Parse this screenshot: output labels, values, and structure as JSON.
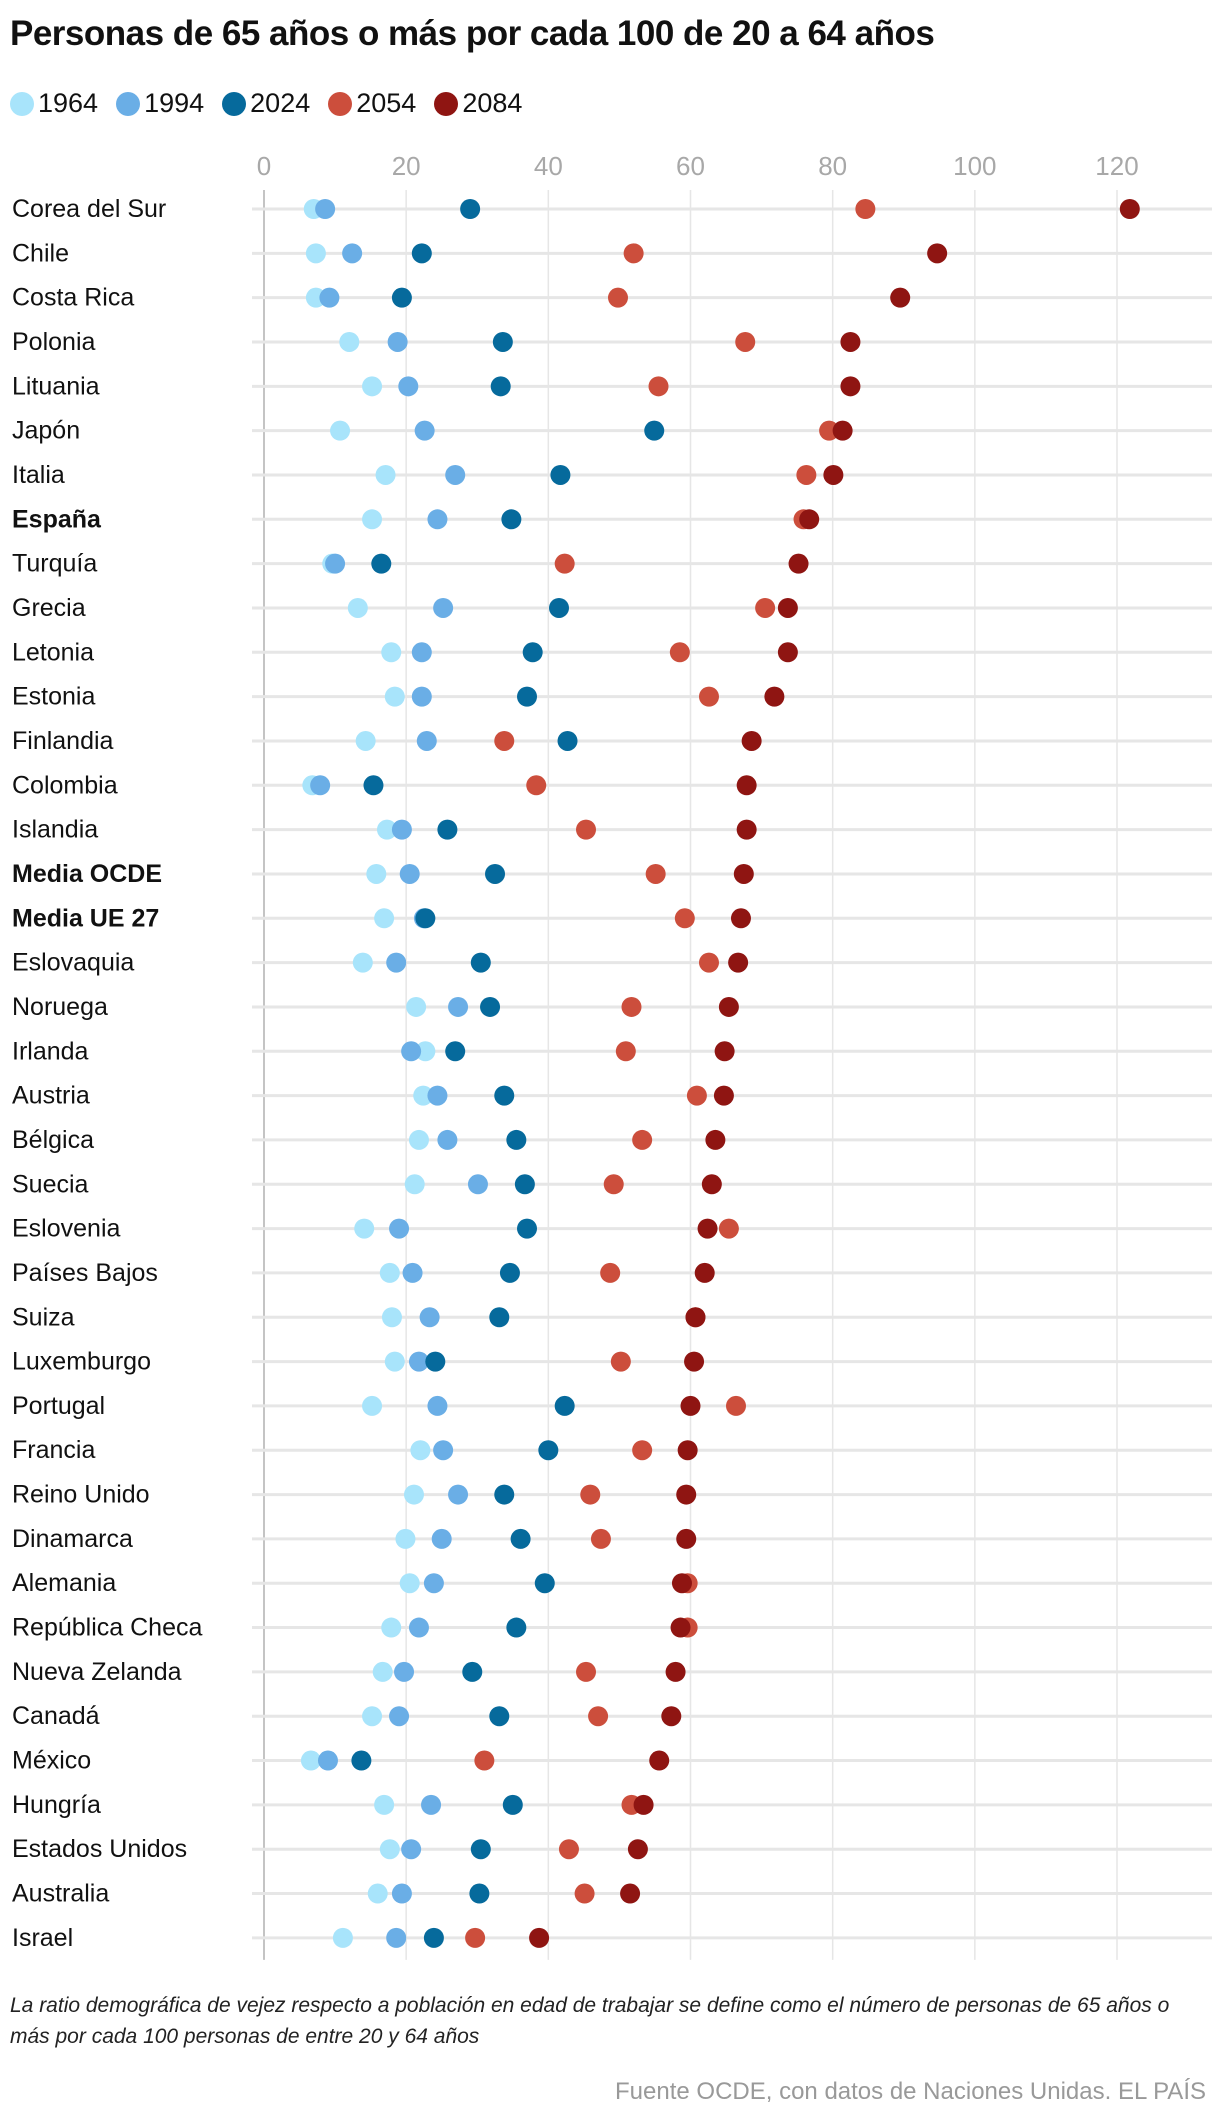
{
  "chart_data": {
    "type": "scatter",
    "title": "Personas de 65 años o más por cada 100 de 20 a 64 años",
    "xlim": [
      0,
      125
    ],
    "xticks": [
      0,
      20,
      40,
      60,
      80,
      100,
      120
    ],
    "grid": true,
    "legend_placement": "top-left",
    "series": [
      {
        "name": "1964",
        "color": "#a8e4fb"
      },
      {
        "name": "1994",
        "color": "#6aaee6"
      },
      {
        "name": "2024",
        "color": "#066a9c"
      },
      {
        "name": "2054",
        "color": "#cc4e3c"
      },
      {
        "name": "2084",
        "color": "#8f1512"
      }
    ],
    "categories": [
      {
        "label": "Corea del Sur",
        "bold": false,
        "values": [
          7.0,
          8.6,
          29.0,
          84.6,
          121.8
        ]
      },
      {
        "label": "Chile",
        "bold": false,
        "values": [
          7.3,
          12.4,
          22.2,
          52.0,
          94.7
        ]
      },
      {
        "label": "Costa Rica",
        "bold": false,
        "values": [
          7.3,
          9.2,
          19.4,
          49.8,
          89.5
        ]
      },
      {
        "label": "Polonia",
        "bold": false,
        "values": [
          12.0,
          18.8,
          33.6,
          67.7,
          82.5
        ]
      },
      {
        "label": "Lituania",
        "bold": false,
        "values": [
          15.2,
          20.3,
          33.3,
          55.5,
          82.5
        ]
      },
      {
        "label": "Japón",
        "bold": false,
        "values": [
          10.7,
          22.6,
          54.9,
          79.5,
          81.4
        ]
      },
      {
        "label": "Italia",
        "bold": false,
        "values": [
          17.1,
          26.9,
          41.7,
          76.3,
          80.1
        ]
      },
      {
        "label": "España",
        "bold": true,
        "values": [
          15.2,
          24.4,
          34.8,
          75.9,
          76.7
        ]
      },
      {
        "label": "Turquía",
        "bold": false,
        "values": [
          9.6,
          10.0,
          16.5,
          42.3,
          75.2
        ]
      },
      {
        "label": "Grecia",
        "bold": false,
        "values": [
          13.2,
          25.2,
          41.5,
          70.5,
          73.7
        ]
      },
      {
        "label": "Letonia",
        "bold": false,
        "values": [
          17.9,
          22.2,
          37.8,
          58.5,
          73.7
        ]
      },
      {
        "label": "Estonia",
        "bold": false,
        "values": [
          18.4,
          22.2,
          37.0,
          62.6,
          71.8
        ]
      },
      {
        "label": "Finlandia",
        "bold": false,
        "values": [
          14.3,
          22.9,
          42.7,
          33.8,
          68.6
        ]
      },
      {
        "label": "Colombia",
        "bold": false,
        "values": [
          6.8,
          7.9,
          15.4,
          38.3,
          67.9
        ]
      },
      {
        "label": "Islandia",
        "bold": false,
        "values": [
          17.3,
          19.4,
          25.8,
          45.3,
          67.9
        ]
      },
      {
        "label": "Media OCDE",
        "bold": true,
        "values": [
          15.8,
          20.5,
          32.5,
          55.1,
          67.5
        ]
      },
      {
        "label": "Media UE 27",
        "bold": true,
        "values": [
          16.9,
          22.5,
          22.7,
          59.2,
          67.1
        ]
      },
      {
        "label": "Eslovaquia",
        "bold": false,
        "values": [
          13.9,
          18.6,
          30.5,
          62.6,
          66.7
        ]
      },
      {
        "label": "Noruega",
        "bold": false,
        "values": [
          21.4,
          27.3,
          31.8,
          51.7,
          65.4
        ]
      },
      {
        "label": "Irlanda",
        "bold": false,
        "values": [
          22.7,
          20.7,
          26.9,
          50.9,
          64.8
        ]
      },
      {
        "label": "Austria",
        "bold": false,
        "values": [
          22.4,
          24.4,
          33.8,
          60.9,
          64.7
        ]
      },
      {
        "label": "Bélgica",
        "bold": false,
        "values": [
          21.8,
          25.8,
          35.5,
          53.2,
          63.5
        ]
      },
      {
        "label": "Suecia",
        "bold": false,
        "values": [
          21.2,
          30.1,
          36.7,
          49.2,
          63.0
        ]
      },
      {
        "label": "Eslovenia",
        "bold": false,
        "values": [
          14.1,
          19.0,
          37.0,
          65.4,
          62.4
        ]
      },
      {
        "label": "Países Bajos",
        "bold": false,
        "values": [
          17.7,
          20.9,
          34.6,
          48.7,
          62.0
        ]
      },
      {
        "label": "Suiza",
        "bold": false,
        "values": [
          18.0,
          23.3,
          33.1,
          60.7,
          60.7
        ]
      },
      {
        "label": "Luxemburgo",
        "bold": false,
        "values": [
          18.4,
          21.8,
          24.1,
          50.2,
          60.5
        ]
      },
      {
        "label": "Portugal",
        "bold": false,
        "values": [
          15.2,
          24.4,
          42.3,
          66.4,
          60.0
        ]
      },
      {
        "label": "Francia",
        "bold": false,
        "values": [
          22.0,
          25.2,
          40.0,
          53.2,
          59.6
        ]
      },
      {
        "label": "Reino Unido",
        "bold": false,
        "values": [
          21.1,
          27.3,
          33.8,
          45.9,
          59.4
        ]
      },
      {
        "label": "Dinamarca",
        "bold": false,
        "values": [
          19.9,
          25.0,
          36.1,
          47.4,
          59.4
        ]
      },
      {
        "label": "Alemania",
        "bold": false,
        "values": [
          20.5,
          23.9,
          39.5,
          59.6,
          58.8
        ]
      },
      {
        "label": "República Checa",
        "bold": false,
        "values": [
          17.9,
          21.8,
          35.5,
          59.6,
          58.6
        ]
      },
      {
        "label": "Nueva Zelanda",
        "bold": false,
        "values": [
          16.7,
          19.7,
          29.3,
          45.3,
          57.9
        ]
      },
      {
        "label": "Canadá",
        "bold": false,
        "values": [
          15.2,
          19.0,
          33.1,
          47.0,
          57.3
        ]
      },
      {
        "label": "México",
        "bold": false,
        "values": [
          6.6,
          9.0,
          13.7,
          31.0,
          55.6
        ]
      },
      {
        "label": "Hungría",
        "bold": false,
        "values": [
          16.9,
          23.5,
          35.0,
          51.7,
          53.4
        ]
      },
      {
        "label": "Estados Unidos",
        "bold": false,
        "values": [
          17.7,
          20.7,
          30.5,
          42.9,
          52.6
        ]
      },
      {
        "label": "Australia",
        "bold": false,
        "values": [
          16.0,
          19.4,
          30.3,
          45.1,
          51.5
        ]
      },
      {
        "label": "Israel",
        "bold": false,
        "values": [
          11.1,
          18.6,
          23.9,
          29.7,
          38.7
        ]
      }
    ]
  },
  "footer": {
    "note": "La ratio demográfica de vejez respecto a población en edad de trabajar se define como el número de personas de 65 años o más por cada 100 personas de entre 20 y 64 años",
    "source": "Fuente OCDE, con datos de Naciones Unidas. EL PAÍS"
  }
}
